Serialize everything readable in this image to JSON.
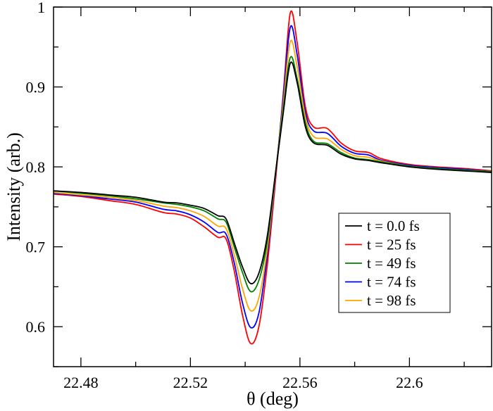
{
  "chart_data": {
    "type": "line",
    "xlabel": "θ  (deg)",
    "ylabel": "Intensity (arb.)",
    "xlim": [
      22.47,
      22.63
    ],
    "ylim": [
      0.55,
      1.0
    ],
    "xticks": [
      22.48,
      22.52,
      22.56,
      22.6
    ],
    "xtick_labels": [
      "22.48",
      "22.52",
      "22.56",
      "22.6"
    ],
    "yticks": [
      0.6,
      0.7,
      0.8,
      0.9,
      1.0
    ],
    "ytick_labels": [
      "0.6",
      "0.7",
      "0.8",
      "0.9",
      "1"
    ],
    "grid": false,
    "legend_position": "bottom-right",
    "x": [
      22.47,
      22.48,
      22.49,
      22.5,
      22.51,
      22.515,
      22.52,
      22.525,
      22.53,
      22.533,
      22.536,
      22.539,
      22.542,
      22.545,
      22.548,
      22.551,
      22.554,
      22.5565,
      22.559,
      22.562,
      22.565,
      22.57,
      22.575,
      22.58,
      22.585,
      22.59,
      22.6,
      22.61,
      22.62,
      22.63
    ],
    "series": [
      {
        "name": "t = 0.0 fs",
        "color": "#000000",
        "values": [
          0.77,
          0.768,
          0.765,
          0.762,
          0.756,
          0.755,
          0.752,
          0.748,
          0.739,
          0.735,
          0.705,
          0.675,
          0.654,
          0.667,
          0.712,
          0.79,
          0.87,
          0.93,
          0.905,
          0.85,
          0.83,
          0.827,
          0.816,
          0.81,
          0.808,
          0.805,
          0.8,
          0.797,
          0.795,
          0.793
        ]
      },
      {
        "name": "t = 25 fs",
        "color": "#ff0000",
        "values": [
          0.766,
          0.763,
          0.758,
          0.753,
          0.743,
          0.741,
          0.736,
          0.725,
          0.712,
          0.71,
          0.67,
          0.615,
          0.579,
          0.6,
          0.675,
          0.78,
          0.895,
          0.993,
          0.955,
          0.875,
          0.85,
          0.848,
          0.83,
          0.82,
          0.818,
          0.81,
          0.803,
          0.8,
          0.798,
          0.795
        ]
      },
      {
        "name": "t = 49 fs",
        "color": "#008000",
        "values": [
          0.77,
          0.767,
          0.764,
          0.76,
          0.755,
          0.753,
          0.75,
          0.745,
          0.735,
          0.731,
          0.7,
          0.668,
          0.644,
          0.658,
          0.705,
          0.79,
          0.875,
          0.937,
          0.91,
          0.855,
          0.832,
          0.829,
          0.818,
          0.811,
          0.809,
          0.806,
          0.801,
          0.798,
          0.796,
          0.794
        ]
      },
      {
        "name": "t = 74 fs",
        "color": "#0000ff",
        "values": [
          0.767,
          0.764,
          0.76,
          0.756,
          0.747,
          0.745,
          0.74,
          0.731,
          0.718,
          0.716,
          0.68,
          0.63,
          0.599,
          0.617,
          0.688,
          0.786,
          0.89,
          0.975,
          0.94,
          0.868,
          0.845,
          0.842,
          0.826,
          0.817,
          0.815,
          0.808,
          0.802,
          0.799,
          0.797,
          0.794
        ]
      },
      {
        "name": "t = 98 fs",
        "color": "#ffa500",
        "values": [
          0.768,
          0.765,
          0.762,
          0.758,
          0.751,
          0.749,
          0.745,
          0.738,
          0.726,
          0.723,
          0.69,
          0.648,
          0.62,
          0.636,
          0.696,
          0.788,
          0.882,
          0.957,
          0.925,
          0.862,
          0.838,
          0.835,
          0.822,
          0.814,
          0.812,
          0.807,
          0.801,
          0.798,
          0.796,
          0.794
        ]
      }
    ]
  }
}
